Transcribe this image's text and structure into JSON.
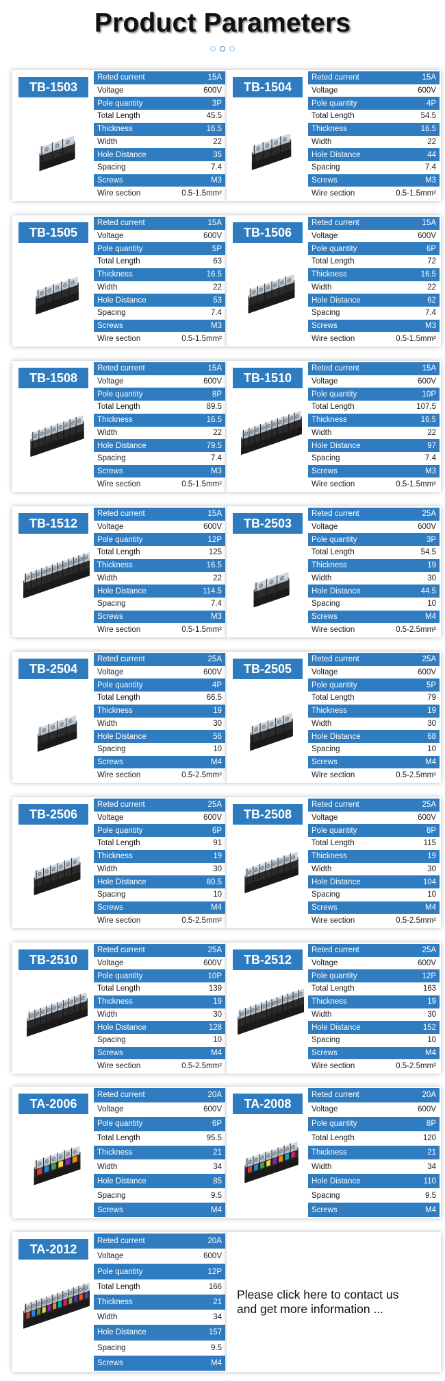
{
  "page": {
    "title": "Product Parameters",
    "contact_line1": "Please click here to contact us",
    "contact_line2": "and get more information ..."
  },
  "colors": {
    "accent": "#2e7bc0",
    "row_alt": "#ffffff"
  },
  "spec_labels_tb": [
    "Reted current",
    "Voltage",
    "Pole quantity",
    "Total Length",
    "Thickness",
    "Width",
    "Hole Distance",
    "Spacing",
    "Screws",
    "Wire section"
  ],
  "spec_labels_ta": [
    "Reted current",
    "Voltage",
    "Pole quantity",
    "Total Length",
    "Thickness",
    "Width",
    "Hole Distance",
    "Spacing",
    "Screws"
  ],
  "products": [
    {
      "model": "TB-1503",
      "type": "tb",
      "poles": 3,
      "values": [
        "15A",
        "600V",
        "3P",
        "45.5",
        "16.5",
        "22",
        "35",
        "7.4",
        "M3",
        "0.5-1.5mm²"
      ]
    },
    {
      "model": "TB-1504",
      "type": "tb",
      "poles": 4,
      "values": [
        "15A",
        "600V",
        "4P",
        "54.5",
        "16.5",
        "22",
        "44",
        "7.4",
        "M3",
        "0.5-1.5mm²"
      ]
    },
    {
      "model": "TB-1505",
      "type": "tb",
      "poles": 5,
      "values": [
        "15A",
        "600V",
        "5P",
        "63",
        "16.5",
        "22",
        "53",
        "7.4",
        "M3",
        "0.5-1.5mm²"
      ]
    },
    {
      "model": "TB-1506",
      "type": "tb",
      "poles": 6,
      "values": [
        "15A",
        "600V",
        "6P",
        "72",
        "16.5",
        "22",
        "62",
        "7.4",
        "M3",
        "0.5-1.5mm²"
      ]
    },
    {
      "model": "TB-1508",
      "type": "tb",
      "poles": 8,
      "values": [
        "15A",
        "600V",
        "8P",
        "89.5",
        "16.5",
        "22",
        "79.5",
        "7.4",
        "M3",
        "0.5-1.5mm²"
      ]
    },
    {
      "model": "TB-1510",
      "type": "tb",
      "poles": 10,
      "values": [
        "15A",
        "600V",
        "10P",
        "107.5",
        "16.5",
        "22",
        "97",
        "7.4",
        "M3",
        "0.5-1.5mm²"
      ]
    },
    {
      "model": "TB-1512",
      "type": "tb",
      "poles": 12,
      "values": [
        "15A",
        "600V",
        "12P",
        "125",
        "16.5",
        "22",
        "114.5",
        "7.4",
        "M3",
        "0.5-1.5mm²"
      ]
    },
    {
      "model": "TB-2503",
      "type": "tb",
      "poles": 3,
      "values": [
        "25A",
        "600V",
        "3P",
        "54.5",
        "19",
        "30",
        "44.5",
        "10",
        "M4",
        "0.5-2.5mm²"
      ]
    },
    {
      "model": "TB-2504",
      "type": "tb",
      "poles": 4,
      "values": [
        "25A",
        "600V",
        "4P",
        "66.5",
        "19",
        "30",
        "56",
        "10",
        "M4",
        "0.5-2.5mm²"
      ]
    },
    {
      "model": "TB-2505",
      "type": "tb",
      "poles": 5,
      "values": [
        "25A",
        "600V",
        "5P",
        "79",
        "19",
        "30",
        "68",
        "10",
        "M4",
        "0.5-2.5mm²"
      ]
    },
    {
      "model": "TB-2506",
      "type": "tb",
      "poles": 6,
      "values": [
        "25A",
        "600V",
        "6P",
        "91",
        "19",
        "30",
        "80.5",
        "10",
        "M4",
        "0.5-2.5mm²"
      ]
    },
    {
      "model": "TB-2508",
      "type": "tb",
      "poles": 8,
      "values": [
        "25A",
        "600V",
        "8P",
        "115",
        "19",
        "30",
        "104",
        "10",
        "M4",
        "0.5-2.5mm²"
      ]
    },
    {
      "model": "TB-2510",
      "type": "tb",
      "poles": 10,
      "values": [
        "25A",
        "600V",
        "10P",
        "139",
        "19",
        "30",
        "128",
        "10",
        "M4",
        "0.5-2.5mm²"
      ]
    },
    {
      "model": "TB-2512",
      "type": "tb",
      "poles": 12,
      "values": [
        "25A",
        "600V",
        "12P",
        "163",
        "19",
        "30",
        "152",
        "10",
        "M4",
        "0.5-2.5mm²"
      ]
    },
    {
      "model": "TA-2006",
      "type": "ta",
      "poles": 6,
      "values": [
        "20A",
        "600V",
        "6P",
        "95.5",
        "21",
        "34",
        "85",
        "9.5",
        "M4"
      ]
    },
    {
      "model": "TA-2008",
      "type": "ta",
      "poles": 8,
      "values": [
        "20A",
        "600V",
        "8P",
        "120",
        "21",
        "34",
        "110",
        "9.5",
        "M4"
      ]
    },
    {
      "model": "TA-2012",
      "type": "ta",
      "poles": 12,
      "values": [
        "20A",
        "600V",
        "12P",
        "166",
        "21",
        "34",
        "157",
        "9.5",
        "M4"
      ]
    }
  ]
}
